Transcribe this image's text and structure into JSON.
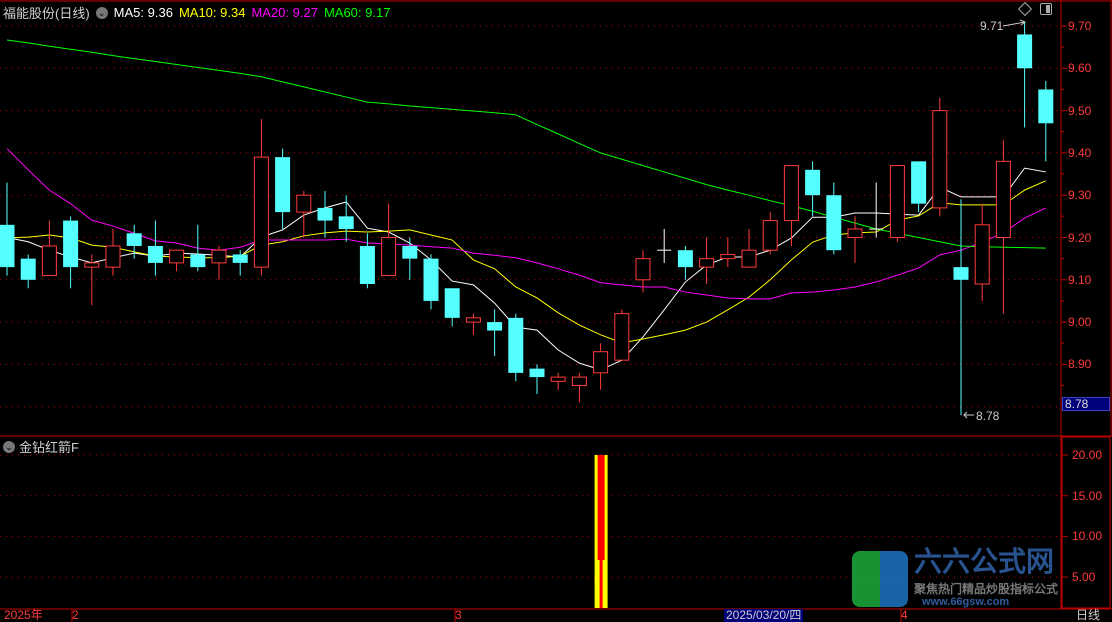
{
  "header": {
    "title": "福能股份(日线)",
    "ma": [
      {
        "label": "MA5: 9.36",
        "color": "#ffffff"
      },
      {
        "label": "MA10: 9.34",
        "color": "#ffff00"
      },
      {
        "label": "MA20: 9.27",
        "color": "#ff00ff"
      },
      {
        "label": "MA60: 9.17",
        "color": "#00ff00"
      }
    ]
  },
  "indicator": {
    "title": "金钻红箭F"
  },
  "price_axis": [
    "9.70",
    "9.60",
    "9.50",
    "9.40",
    "9.30",
    "9.20",
    "9.10",
    "9.00",
    "8.90"
  ],
  "last_price_box": "8.78",
  "markers": {
    "high": "9.71",
    "low": "8.78"
  },
  "indicator_axis": [
    "20.00",
    "15.00",
    "10.00",
    "5.00"
  ],
  "time_axis": {
    "year": "2025年",
    "m2": "2",
    "m3": "3",
    "selected": "2025/03/20/四",
    "m4": "4",
    "period": "日线"
  },
  "watermark": {
    "brand": "六六公式网",
    "slogan": "聚焦热门精品炒股指标公式",
    "url": "www.66gsw.com"
  },
  "colors": {
    "up": "#ff3b3b",
    "down": "#54ffff",
    "doji": "#ffffff",
    "grid": "#c00000",
    "axis": "#c00000",
    "ind_outer": "#ffff00",
    "ind_inner": "#ff0000"
  },
  "chart_data": {
    "type": "candlestick",
    "ylim": [
      8.72,
      9.76
    ],
    "candles": [
      [
        9.23,
        9.33,
        9.11,
        9.13
      ],
      [
        9.15,
        9.16,
        9.08,
        9.1
      ],
      [
        9.11,
        9.24,
        9.11,
        9.18
      ],
      [
        9.24,
        9.25,
        9.08,
        9.13
      ],
      [
        9.13,
        9.16,
        9.04,
        9.14
      ],
      [
        9.13,
        9.22,
        9.11,
        9.18
      ],
      [
        9.21,
        9.23,
        9.15,
        9.18
      ],
      [
        9.18,
        9.24,
        9.11,
        9.14
      ],
      [
        9.14,
        9.17,
        9.12,
        9.17
      ],
      [
        9.16,
        9.23,
        9.12,
        9.13
      ],
      [
        9.14,
        9.18,
        9.1,
        9.17
      ],
      [
        9.16,
        9.17,
        9.11,
        9.14
      ],
      [
        9.13,
        9.48,
        9.11,
        9.39
      ],
      [
        9.39,
        9.41,
        9.22,
        9.26
      ],
      [
        9.26,
        9.31,
        9.2,
        9.3
      ],
      [
        9.27,
        9.31,
        9.2,
        9.24
      ],
      [
        9.25,
        9.3,
        9.19,
        9.22
      ],
      [
        9.18,
        9.21,
        9.08,
        9.09
      ],
      [
        9.11,
        9.28,
        9.11,
        9.2
      ],
      [
        9.18,
        9.2,
        9.1,
        9.15
      ],
      [
        9.15,
        9.16,
        9.03,
        9.05
      ],
      [
        9.08,
        9.08,
        8.99,
        9.01
      ],
      [
        9.0,
        9.02,
        8.97,
        9.01
      ],
      [
        9.0,
        9.03,
        8.92,
        8.98
      ],
      [
        9.01,
        9.02,
        8.86,
        8.88
      ],
      [
        8.89,
        8.9,
        8.83,
        8.87
      ],
      [
        8.86,
        8.88,
        8.84,
        8.87
      ],
      [
        8.85,
        8.88,
        8.81,
        8.87
      ],
      [
        8.88,
        8.95,
        8.84,
        8.93
      ],
      [
        8.91,
        9.03,
        8.91,
        9.02
      ],
      [
        9.1,
        9.17,
        9.07,
        9.15
      ],
      [
        9.17,
        9.22,
        9.14,
        9.17
      ],
      [
        9.17,
        9.18,
        9.1,
        9.13
      ],
      [
        9.13,
        9.2,
        9.09,
        9.15
      ],
      [
        9.15,
        9.2,
        9.13,
        9.16
      ],
      [
        9.13,
        9.22,
        9.13,
        9.17
      ],
      [
        9.17,
        9.26,
        9.16,
        9.24
      ],
      [
        9.24,
        9.37,
        9.18,
        9.37
      ],
      [
        9.36,
        9.38,
        9.25,
        9.3
      ],
      [
        9.3,
        9.33,
        9.16,
        9.17
      ],
      [
        9.2,
        9.25,
        9.14,
        9.22
      ],
      [
        9.22,
        9.33,
        9.2,
        9.22
      ],
      [
        9.2,
        9.37,
        9.19,
        9.37
      ],
      [
        9.38,
        9.38,
        9.26,
        9.28
      ],
      [
        9.27,
        9.53,
        9.25,
        9.5
      ],
      [
        9.13,
        9.29,
        8.78,
        9.1
      ],
      [
        9.09,
        9.28,
        9.05,
        9.23
      ],
      [
        9.2,
        9.43,
        9.02,
        9.38
      ],
      [
        9.68,
        9.71,
        9.46,
        9.6
      ],
      [
        9.55,
        9.57,
        9.38,
        9.47
      ]
    ],
    "series": [
      {
        "name": "MA5",
        "color": "#ffffff",
        "values": [
          9.2,
          9.19,
          9.17,
          9.154,
          9.14,
          9.152,
          9.163,
          9.156,
          9.163,
          9.161,
          9.158,
          9.154,
          9.201,
          9.218,
          9.253,
          9.27,
          9.284,
          9.222,
          9.213,
          9.187,
          9.147,
          9.097,
          9.088,
          9.045,
          8.988,
          8.981,
          8.934,
          8.903,
          8.887,
          8.91,
          8.965,
          9.029,
          9.095,
          9.135,
          9.154,
          9.154,
          9.17,
          9.199,
          9.248,
          9.248,
          9.258,
          9.258,
          9.255,
          9.253,
          9.319,
          9.296,
          9.296,
          9.296,
          9.364,
          9.355
        ]
      },
      {
        "name": "MA10",
        "color": "#ffff00",
        "values": [
          9.199,
          9.201,
          9.206,
          9.199,
          9.182,
          9.177,
          9.166,
          9.156,
          9.154,
          9.152,
          9.152,
          9.156,
          9.182,
          9.19,
          9.204,
          9.211,
          9.215,
          9.213,
          9.215,
          9.218,
          9.206,
          9.194,
          9.147,
          9.126,
          9.083,
          9.057,
          9.022,
          8.993,
          8.97,
          8.951,
          8.96,
          8.97,
          8.981,
          9.0,
          9.029,
          9.059,
          9.1,
          9.147,
          9.189,
          9.206,
          9.211,
          9.213,
          9.241,
          9.251,
          9.282,
          9.277,
          9.277,
          9.277,
          9.312,
          9.334
        ]
      },
      {
        "name": "MA20",
        "color": "#ff00ff",
        "values": [
          9.41,
          9.36,
          9.312,
          9.28,
          9.241,
          9.227,
          9.21,
          9.192,
          9.187,
          9.175,
          9.17,
          9.177,
          9.194,
          9.194,
          9.194,
          9.194,
          9.196,
          9.187,
          9.185,
          9.182,
          9.178,
          9.175,
          9.163,
          9.158,
          9.152,
          9.14,
          9.126,
          9.111,
          9.093,
          9.088,
          9.083,
          9.083,
          9.071,
          9.064,
          9.057,
          9.055,
          9.055,
          9.069,
          9.071,
          9.076,
          9.083,
          9.095,
          9.111,
          9.128,
          9.159,
          9.17,
          9.189,
          9.211,
          9.246,
          9.27
        ]
      },
      {
        "name": "MA60",
        "color": "#00ff00",
        "values": [
          9.667,
          9.66,
          9.652,
          9.645,
          9.638,
          9.63,
          9.623,
          9.616,
          9.609,
          9.602,
          9.595,
          9.588,
          9.58,
          9.568,
          9.556,
          9.544,
          9.532,
          9.52,
          9.516,
          9.511,
          9.507,
          9.503,
          9.499,
          9.495,
          9.49,
          9.467,
          9.445,
          9.422,
          9.4,
          9.385,
          9.37,
          9.355,
          9.34,
          9.325,
          9.312,
          9.3,
          9.287,
          9.275,
          9.262,
          9.248,
          9.234,
          9.22,
          9.21,
          9.2,
          9.19,
          9.18,
          9.178,
          9.177,
          9.176,
          9.175
        ]
      }
    ],
    "indicator_bars": [
      {
        "index": 28,
        "value": 20
      }
    ],
    "indicator_ylim": [
      0,
      20
    ]
  }
}
